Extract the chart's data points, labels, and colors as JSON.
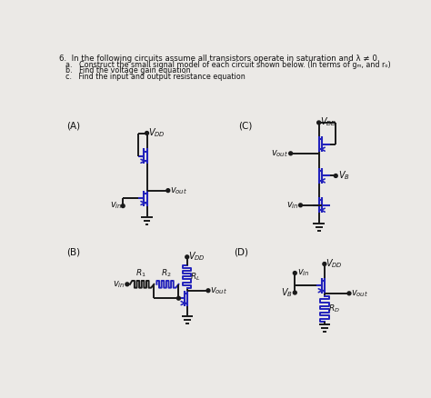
{
  "title": "6.  In the following circuits assume all transistors operate in saturation and λ ≠ 0.",
  "sub_a": "a.   Construct the small signal model of each circuit shown below. (In terms of gₘ, and rₒ)",
  "sub_b": "b.   Find the voltage gain equation",
  "sub_c": "c.   Find the input and output resistance equation",
  "bg_color": "#ebe9e6",
  "lc": "#1a1a1a",
  "mc": "#2222bb",
  "tc": "#111111"
}
